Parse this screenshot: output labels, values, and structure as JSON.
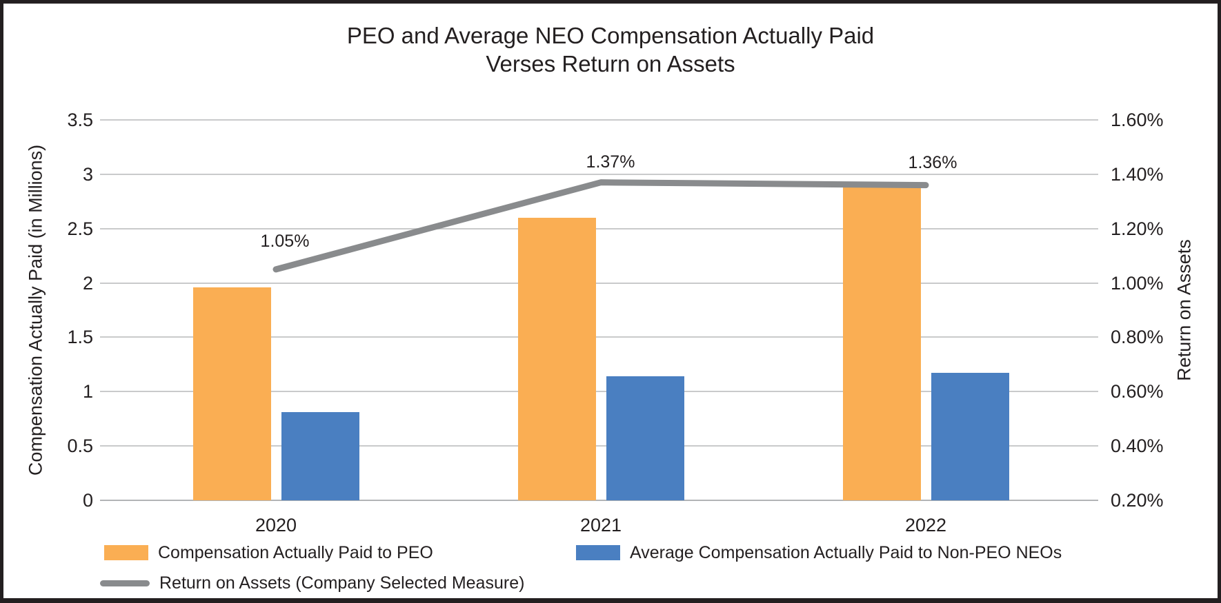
{
  "figure": {
    "title_line1": "PEO and Average NEO Compensation Actually Paid",
    "title_line2": "Verses Return on Assets"
  },
  "chart_data": {
    "type": "bar",
    "subtype": "combo bar + line, dual axis",
    "title": "PEO and Average NEO Compensation Actually Paid Verses Return on Assets",
    "categories": [
      "2020",
      "2021",
      "2022"
    ],
    "series": [
      {
        "name": "Compensation Actually Paid to PEO",
        "type": "bar",
        "axis": "left",
        "color": "#FAAE53",
        "values": [
          1.96,
          2.6,
          2.92
        ]
      },
      {
        "name": "Average Compensation Actually Paid to Non-PEO NEOs",
        "type": "bar",
        "axis": "left",
        "color": "#4A7FC1",
        "values": [
          0.81,
          1.14,
          1.17
        ]
      },
      {
        "name": "Return on Assets (Company Selected Measure)",
        "type": "line",
        "axis": "right",
        "color": "#898B8D",
        "values": [
          1.05,
          1.37,
          1.36
        ],
        "labels": [
          "1.05%",
          "1.37%",
          "1.36%"
        ]
      }
    ],
    "left_axis": {
      "title": "Compensation Actually Paid (in Millions)",
      "min": 0,
      "max": 3.5,
      "step": 0.5,
      "tick_labels": [
        "0",
        "0.5",
        "1",
        "1.5",
        "2",
        "2.5",
        "3",
        "3.5"
      ]
    },
    "right_axis": {
      "title": "Return on Assets",
      "min": 0.2,
      "max": 1.6,
      "step": 0.2,
      "tick_labels": [
        "0.20%",
        "0.40%",
        "0.60%",
        "0.80%",
        "1.00%",
        "1.20%",
        "1.40%",
        "1.60%"
      ]
    },
    "grid": true,
    "legend_position": "bottom",
    "colors": {
      "grid": "#C9CACB",
      "baseline": "#B2B4B6",
      "text": "#231F20"
    }
  }
}
